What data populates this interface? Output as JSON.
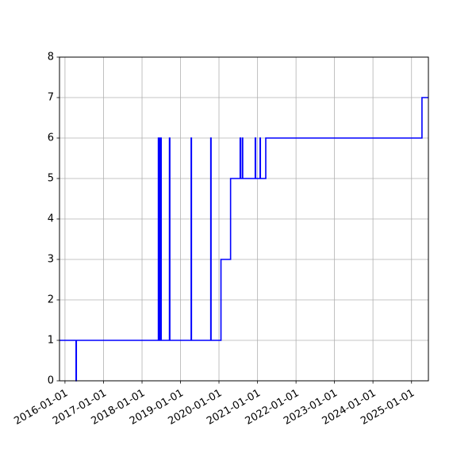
{
  "chart_data": {
    "type": "line",
    "step": true,
    "title": "",
    "xlabel": "",
    "ylabel": "",
    "xlim": [
      "2015-11-10",
      "2025-06-10"
    ],
    "ylim": [
      0,
      8
    ],
    "grid": true,
    "legend": "none",
    "x_ticks": [
      "2016-01-01",
      "2017-01-01",
      "2018-01-01",
      "2019-01-01",
      "2020-01-01",
      "2021-01-01",
      "2022-01-01",
      "2023-01-01",
      "2024-01-01",
      "2025-01-01"
    ],
    "y_ticks": [
      "0",
      "1",
      "2",
      "3",
      "4",
      "5",
      "6",
      "7",
      "8"
    ],
    "series": [
      {
        "color": "#0000ff",
        "x": [
          "2015-11-10",
          "2016-04-15",
          "2016-04-15",
          "2016-04-18",
          "2016-04-18",
          "2018-06-05",
          "2018-06-05",
          "2018-06-08",
          "2018-06-08",
          "2018-06-12",
          "2018-06-12",
          "2018-06-16",
          "2018-06-16",
          "2018-06-20",
          "2018-06-20",
          "2018-06-24",
          "2018-06-24",
          "2018-06-28",
          "2018-06-28",
          "2018-07-02",
          "2018-07-02",
          "2018-09-18",
          "2018-09-18",
          "2018-09-22",
          "2018-09-22",
          "2019-04-12",
          "2019-04-12",
          "2019-04-15",
          "2019-04-15",
          "2019-10-15",
          "2019-10-15",
          "2019-10-18",
          "2019-10-18",
          "2020-01-20",
          "2020-01-20",
          "2020-04-20",
          "2020-04-20",
          "2020-07-20",
          "2020-07-20",
          "2020-07-24",
          "2020-07-24",
          "2020-08-10",
          "2020-08-10",
          "2020-08-13",
          "2020-08-13",
          "2020-12-10",
          "2020-12-10",
          "2020-12-14",
          "2020-12-14",
          "2021-01-25",
          "2021-01-25",
          "2021-01-28",
          "2021-01-28",
          "2021-03-20",
          "2021-03-20",
          "2025-04-10",
          "2025-04-10",
          "2025-06-10"
        ],
        "y": [
          1,
          1,
          0,
          0,
          1,
          1,
          6,
          6,
          1,
          1,
          6,
          6,
          1,
          1,
          6,
          6,
          1,
          1,
          6,
          6,
          1,
          1,
          6,
          6,
          1,
          1,
          6,
          6,
          1,
          1,
          6,
          6,
          1,
          1,
          3,
          3,
          5,
          5,
          6,
          6,
          5,
          5,
          6,
          6,
          5,
          5,
          6,
          6,
          5,
          5,
          6,
          6,
          5,
          5,
          6,
          6,
          7,
          7
        ]
      }
    ]
  }
}
